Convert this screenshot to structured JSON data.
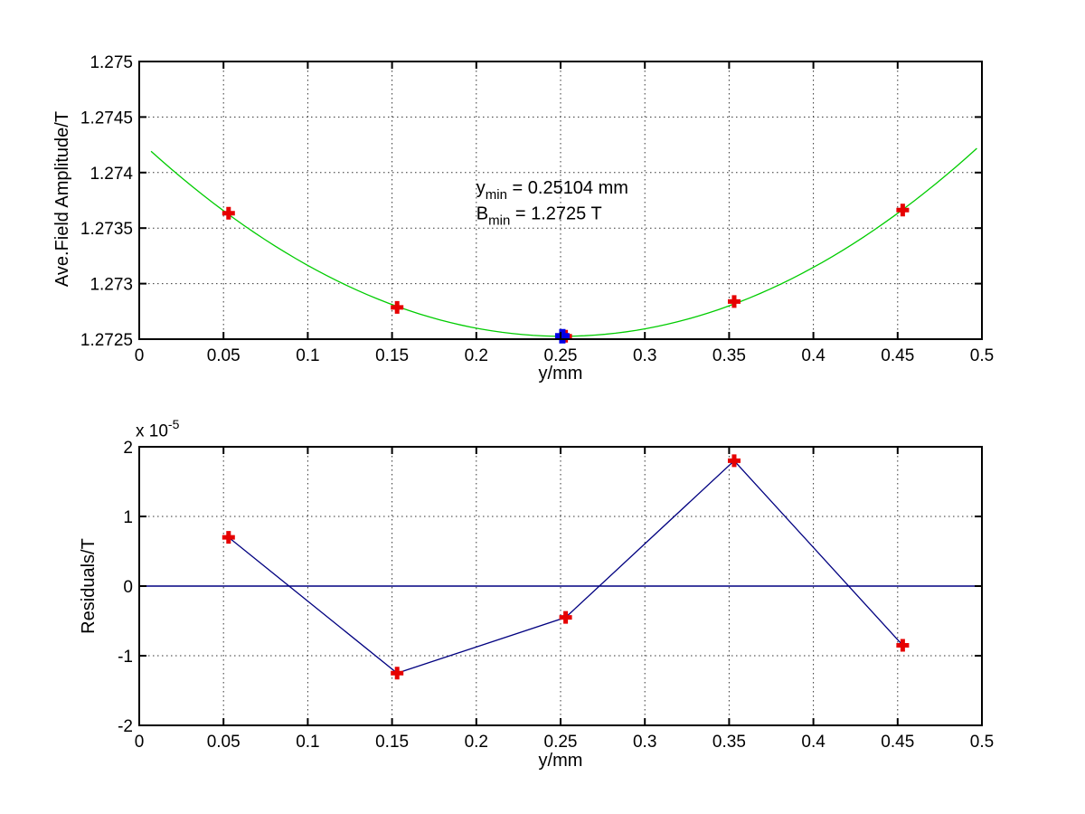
{
  "figure": {
    "background": "#ffffff",
    "grid_style": "dotted",
    "box_color": "#000000"
  },
  "chart_data": [
    {
      "type": "scatter",
      "subtype": "data points with quadratic fit curve",
      "xlabel": "y/mm",
      "ylabel": "Ave.Field Amplitude/T",
      "xlim": [
        0,
        0.5
      ],
      "ylim": [
        1.2725,
        1.275
      ],
      "xticks": [
        0,
        0.05,
        0.1,
        0.15,
        0.2,
        0.25,
        0.3,
        0.35,
        0.4,
        0.45,
        0.5
      ],
      "xtick_labels": [
        "0",
        "0.05",
        "0.1",
        "0.15",
        "0.2",
        "0.25",
        "0.3",
        "0.35",
        "0.4",
        "0.45",
        "0.5"
      ],
      "yticks": [
        1.2725,
        1.273,
        1.2735,
        1.274,
        1.2745,
        1.275
      ],
      "ytick_labels": [
        "1.2725",
        "1.273",
        "1.2735",
        "1.274",
        "1.2745",
        "1.275"
      ],
      "grid": "dotted",
      "legend": "none",
      "series": [
        {
          "name": "quadratic-fit-curve",
          "kind": "fit_parabola",
          "color": "#00CC00",
          "a": 0.02797,
          "x0": 0.25104,
          "y0": 1.272526,
          "x_start": 0.007,
          "x_end": 0.497
        },
        {
          "name": "measured-points",
          "kind": "scatter",
          "marker": "plus",
          "color": "#E60000",
          "x": [
            0.053,
            0.153,
            0.253,
            0.353,
            0.453
          ],
          "y": [
            1.273634,
            1.272786,
            1.272526,
            1.272839,
            1.273662
          ]
        },
        {
          "name": "fit-minimum-point",
          "kind": "scatter",
          "marker": "plus",
          "color": "#0000E6",
          "x": [
            0.25104
          ],
          "y": [
            1.272526
          ]
        }
      ],
      "annotations": [
        {
          "x": 0.2,
          "y": 1.27381,
          "pre": "y",
          "sub": "min",
          "post": "= 0.25104 mm"
        },
        {
          "x": 0.2,
          "y": 1.27358,
          "pre": "B",
          "sub": "min",
          "post": "= 1.2725 T"
        }
      ]
    },
    {
      "type": "line",
      "subtype": "residuals with zero reference line",
      "xlabel": "y/mm",
      "ylabel": "Residuals/T",
      "scale_label": {
        "text": "x 10",
        "exp": "-5"
      },
      "value_scale": 1e-05,
      "xlim": [
        0,
        0.5
      ],
      "ylim": [
        -2,
        2
      ],
      "xticks": [
        0,
        0.05,
        0.1,
        0.15,
        0.2,
        0.25,
        0.3,
        0.35,
        0.4,
        0.45,
        0.5
      ],
      "xtick_labels": [
        "0",
        "0.05",
        "0.1",
        "0.15",
        "0.2",
        "0.25",
        "0.3",
        "0.35",
        "0.4",
        "0.45",
        "0.5"
      ],
      "yticks": [
        -2,
        -1,
        0,
        1,
        2
      ],
      "ytick_labels": [
        "-2",
        "-1",
        "0",
        "1",
        "2"
      ],
      "grid": "dotted",
      "legend": "none",
      "series": [
        {
          "name": "zero-reference-line",
          "kind": "hline",
          "color": "#000080",
          "y": 0
        },
        {
          "name": "residuals",
          "kind": "line_scatter",
          "line_color": "#000080",
          "marker": "plus",
          "marker_color": "#E60000",
          "x": [
            0.053,
            0.153,
            0.253,
            0.353,
            0.453
          ],
          "y": [
            0.7,
            -1.25,
            -0.45,
            1.8,
            -0.85
          ]
        }
      ]
    }
  ]
}
